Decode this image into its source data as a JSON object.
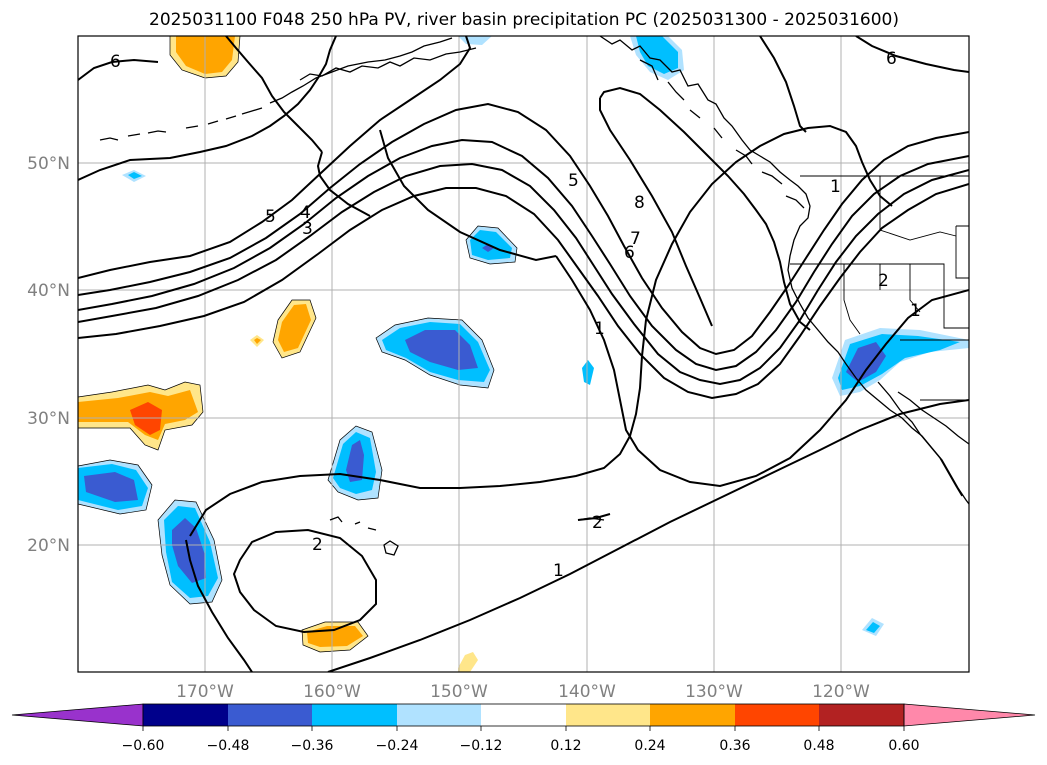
{
  "title": "2025031100 F048 250 hPa PV, river basin precipitation PC (2025031300 - 2025031600)",
  "lat_labels": [
    "50°N",
    "40°N",
    "30°N",
    "20°N"
  ],
  "lon_labels": [
    "170°W",
    "160°W",
    "150°W",
    "140°W",
    "130°W",
    "120°W"
  ],
  "pv_contour_labels": [
    "6",
    "5",
    "4",
    "3",
    "5",
    "8",
    "7",
    "6",
    "1",
    "2",
    "1",
    "6",
    "2",
    "1",
    "2",
    "1"
  ],
  "colorbar": {
    "tick_labels": [
      "−0.60",
      "−0.48",
      "−0.36",
      "−0.24",
      "−0.12",
      "0.12",
      "0.24",
      "0.36",
      "0.48",
      "0.60"
    ],
    "colors": [
      "#9932cc",
      "#00008b",
      "#3a5bd1",
      "#00bfff",
      "#b0e2ff",
      "#ffffff",
      "#ffe68a",
      "#ffa500",
      "#ff4500",
      "#b22222",
      "#ff88aa"
    ]
  },
  "shading_colors": {
    "neg_weak": "#b0e2ff",
    "neg_mid": "#00bfff",
    "neg_strong": "#3a5bd1",
    "pos_weak": "#ffe68a",
    "pos_mid": "#ffa500",
    "pos_strong": "#ff4500"
  }
}
